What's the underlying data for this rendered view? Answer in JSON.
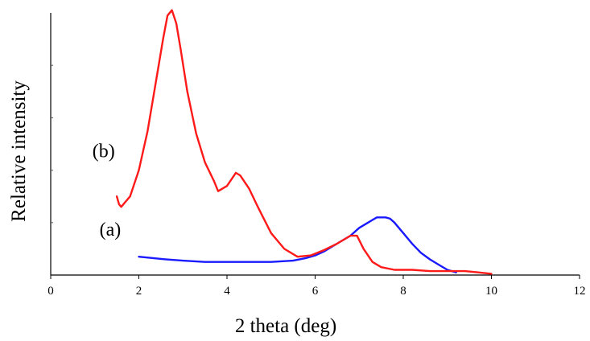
{
  "chart_data": {
    "type": "line",
    "xlabel": "2 theta (deg)",
    "ylabel": "Relative intensity",
    "xlim": [
      0,
      12
    ],
    "ylim": [
      0,
      100
    ],
    "xticks": [
      0,
      2,
      4,
      6,
      8,
      10,
      12
    ],
    "yticks": [
      0,
      20,
      40,
      60,
      80
    ],
    "grid": false,
    "series": [
      {
        "name": "(a)",
        "color": "#1a1aff",
        "x": [
          2.0,
          2.3,
          2.6,
          3.0,
          3.5,
          4.0,
          4.5,
          5.0,
          5.5,
          5.8,
          6.0,
          6.2,
          6.4,
          6.6,
          6.8,
          7.0,
          7.2,
          7.3,
          7.4,
          7.5,
          7.6,
          7.7,
          7.8,
          8.0,
          8.2,
          8.4,
          8.6,
          8.8,
          9.0,
          9.2
        ],
        "values": [
          7,
          6.5,
          6,
          5.5,
          5,
          5,
          5,
          5,
          5.5,
          6.5,
          7.5,
          9,
          11,
          13,
          15,
          18,
          20,
          21,
          22,
          22,
          22,
          21.5,
          20,
          16,
          12,
          8.5,
          6,
          4,
          2,
          1
        ]
      },
      {
        "name": "(b)",
        "color": "#ff1a1a",
        "x": [
          1.5,
          1.55,
          1.6,
          1.8,
          2.0,
          2.2,
          2.4,
          2.55,
          2.65,
          2.75,
          2.85,
          2.95,
          3.1,
          3.3,
          3.5,
          3.7,
          3.8,
          4.0,
          4.2,
          4.3,
          4.5,
          4.7,
          5.0,
          5.3,
          5.6,
          5.9,
          6.2,
          6.5,
          6.8,
          6.95,
          7.1,
          7.3,
          7.5,
          7.8,
          8.2,
          8.6,
          9.0,
          9.4,
          9.7,
          10.0
        ],
        "values": [
          30,
          27,
          26,
          30,
          40,
          55,
          75,
          90,
          99,
          101,
          96,
          86,
          70,
          54,
          43,
          36,
          32,
          34,
          39,
          38,
          33,
          26,
          16,
          10,
          7,
          7.5,
          9.5,
          12,
          15,
          15,
          10,
          5,
          3,
          2,
          2,
          1.5,
          1.5,
          1.5,
          1,
          0.5
        ]
      }
    ],
    "annotations": [
      {
        "text": "(a)",
        "x": 1.35,
        "y": 15
      },
      {
        "text": "(b)",
        "x": 1.2,
        "y": 45
      }
    ]
  }
}
